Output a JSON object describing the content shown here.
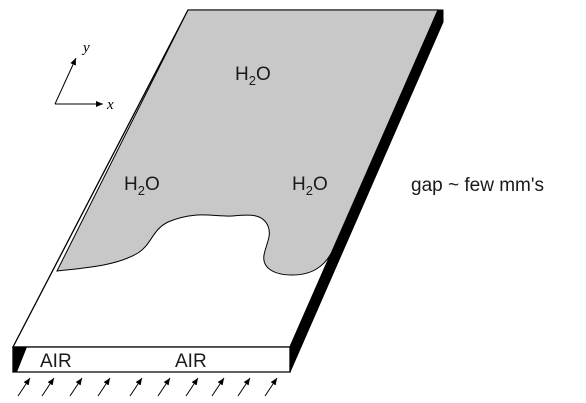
{
  "water_labels": {
    "top": "H",
    "left": "H",
    "right": "H",
    "subscript": "2",
    "suffix": "O"
  },
  "air_labels": {
    "left": "AIR",
    "right": "AIR"
  },
  "gap_label": "gap ~ few mm's",
  "axes": {
    "x": "x",
    "y": "y"
  },
  "colors": {
    "water": "#c8c8c8",
    "outline": "#000000",
    "gap_side": "#000000",
    "background": "#ffffff"
  }
}
